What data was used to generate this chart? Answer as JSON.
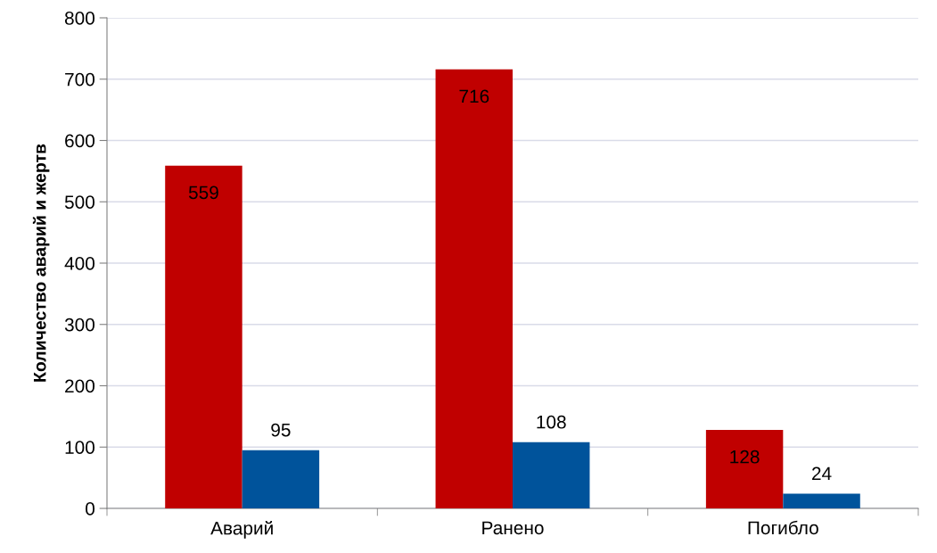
{
  "chart_data": {
    "type": "bar",
    "ylabel": "Количество аварий и жертв",
    "categories": [
      "Аварий",
      "Ранено",
      "Погибло"
    ],
    "series": [
      {
        "color": "#c00000",
        "values": [
          559,
          716,
          128
        ]
      },
      {
        "color": "#00539b",
        "values": [
          95,
          108,
          24
        ]
      }
    ],
    "ylim": [
      0,
      800
    ],
    "yticks": [
      0,
      100,
      200,
      300,
      400,
      500,
      600,
      700,
      800
    ],
    "grid": "y",
    "data_labels": true,
    "legend": false
  }
}
